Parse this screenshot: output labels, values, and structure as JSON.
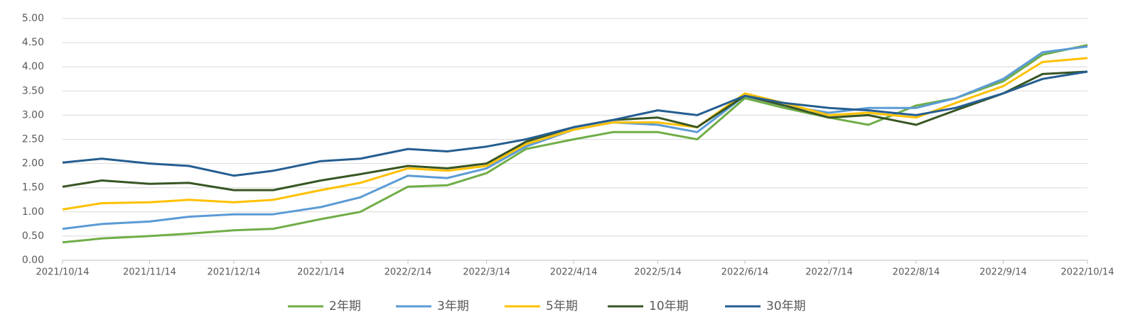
{
  "chart_data": {
    "type": "line",
    "x": [
      "2021/10/14",
      "2021/10/28",
      "2021/11/14",
      "2021/11/28",
      "2021/12/14",
      "2021/12/28",
      "2022/1/14",
      "2022/1/28",
      "2022/2/14",
      "2022/2/28",
      "2022/3/14",
      "2022/3/28",
      "2022/4/14",
      "2022/4/28",
      "2022/5/14",
      "2022/5/28",
      "2022/6/14",
      "2022/6/28",
      "2022/7/14",
      "2022/7/28",
      "2022/8/14",
      "2022/8/28",
      "2022/9/14",
      "2022/9/28",
      "2022/10/14"
    ],
    "series": [
      {
        "name": "2年期",
        "color": "#70ad47",
        "values": [
          0.37,
          0.45,
          0.5,
          0.55,
          0.62,
          0.65,
          0.85,
          1.0,
          1.52,
          1.55,
          1.8,
          2.3,
          2.5,
          2.65,
          2.65,
          2.5,
          3.35,
          3.15,
          2.95,
          2.8,
          3.2,
          3.35,
          3.7,
          4.25,
          4.45
        ]
      },
      {
        "name": "3年期",
        "color": "#5b9bd5",
        "values": [
          0.65,
          0.75,
          0.8,
          0.9,
          0.95,
          0.95,
          1.1,
          1.3,
          1.75,
          1.7,
          1.9,
          2.35,
          2.7,
          2.85,
          2.8,
          2.65,
          3.4,
          3.2,
          3.05,
          3.15,
          3.15,
          3.35,
          3.75,
          4.3,
          4.42
        ]
      },
      {
        "name": "5年期",
        "color": "#ffc000",
        "values": [
          1.05,
          1.18,
          1.2,
          1.25,
          1.2,
          1.25,
          1.45,
          1.6,
          1.9,
          1.85,
          1.95,
          2.4,
          2.7,
          2.85,
          2.85,
          2.75,
          3.45,
          3.25,
          3.0,
          3.05,
          2.95,
          3.25,
          3.6,
          4.1,
          4.18
        ]
      },
      {
        "name": "10年期",
        "color": "#375623",
        "values": [
          1.52,
          1.65,
          1.58,
          1.6,
          1.45,
          1.45,
          1.65,
          1.78,
          1.95,
          1.9,
          2.0,
          2.45,
          2.75,
          2.9,
          2.95,
          2.75,
          3.4,
          3.2,
          2.95,
          3.0,
          2.8,
          3.1,
          3.45,
          3.85,
          3.9
        ]
      },
      {
        "name": "30年期",
        "color": "#255e91",
        "values": [
          2.02,
          2.1,
          2.0,
          1.95,
          1.75,
          1.85,
          2.05,
          2.1,
          2.3,
          2.25,
          2.35,
          2.5,
          2.75,
          2.9,
          3.1,
          3.0,
          3.4,
          3.25,
          3.15,
          3.1,
          3.0,
          3.15,
          3.45,
          3.75,
          3.9
        ]
      }
    ],
    "xlim": [
      "2021/10/14",
      "2022/10/14"
    ],
    "xticks": [
      "2021/10/14",
      "2021/11/14",
      "2021/12/14",
      "2022/1/14",
      "2022/2/14",
      "2022/3/14",
      "2022/4/14",
      "2022/5/14",
      "2022/6/14",
      "2022/7/14",
      "2022/8/14",
      "2022/9/14",
      "2022/10/14"
    ],
    "ylim": [
      0,
      5
    ],
    "yticks": [
      {
        "value": 0,
        "label": "0.00"
      },
      {
        "value": 0.5,
        "label": "0.50"
      },
      {
        "value": 1,
        "label": "1.00"
      },
      {
        "value": 1.5,
        "label": "1.50"
      },
      {
        "value": 2,
        "label": "2.00"
      },
      {
        "value": 2.5,
        "label": "2.50"
      },
      {
        "value": 3,
        "label": "3.00"
      },
      {
        "value": 3.5,
        "label": "3.50"
      },
      {
        "value": 4,
        "label": "4.00"
      },
      {
        "value": 4.5,
        "label": "4.50"
      },
      {
        "value": 5,
        "label": "5.00"
      }
    ],
    "grid": true
  }
}
